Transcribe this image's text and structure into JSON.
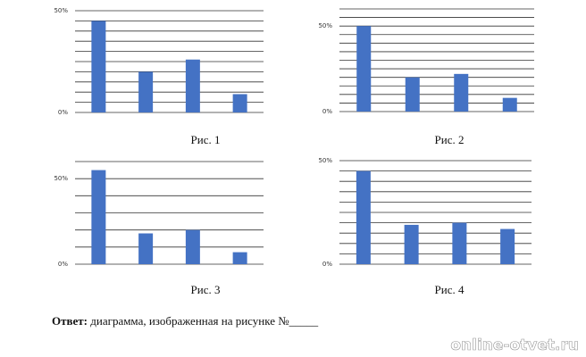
{
  "chart_data": [
    {
      "type": "bar",
      "title": "Рис. 1",
      "values": [
        45,
        20,
        26,
        9
      ],
      "color": "#4472c4",
      "ylim": [
        0,
        50
      ],
      "yticks": [
        {
          "value": 0,
          "label": "0%"
        },
        {
          "value": 50,
          "label": "50%"
        }
      ],
      "minor_yticks": [
        5,
        10,
        15,
        20,
        25,
        30,
        35,
        40,
        45
      ],
      "grid": true
    },
    {
      "type": "bar",
      "title": "Рис. 2",
      "values": [
        50,
        20,
        22,
        8
      ],
      "color": "#4472c4",
      "ylim": [
        0,
        60
      ],
      "yticks": [
        {
          "value": 0,
          "label": "0%"
        },
        {
          "value": 50,
          "label": "50%"
        }
      ],
      "minor_yticks": [
        5,
        10,
        15,
        20,
        25,
        30,
        35,
        40,
        45,
        55,
        60
      ],
      "grid": true
    },
    {
      "type": "bar",
      "title": "Рис. 3",
      "values": [
        55,
        18,
        20,
        7
      ],
      "color": "#4472c4",
      "ylim": [
        0,
        60
      ],
      "yticks": [
        {
          "value": 0,
          "label": "0%"
        },
        {
          "value": 50,
          "label": "50%"
        }
      ],
      "minor_yticks": [
        10,
        20,
        30,
        40,
        60
      ],
      "grid": true
    },
    {
      "type": "bar",
      "title": "Рис. 4",
      "values": [
        45,
        19,
        20,
        17
      ],
      "color": "#4472c4",
      "ylim": [
        0,
        50
      ],
      "yticks": [
        {
          "value": 0,
          "label": "0%"
        },
        {
          "value": 50,
          "label": "50%"
        }
      ],
      "minor_yticks": [
        5,
        10,
        15,
        20,
        25,
        30,
        35,
        40,
        45
      ],
      "grid": true
    }
  ],
  "answer": {
    "label": "Ответ:",
    "text": "диаграмма, изображенная на рисунке №_____"
  },
  "watermark": "online-otvet.ru"
}
